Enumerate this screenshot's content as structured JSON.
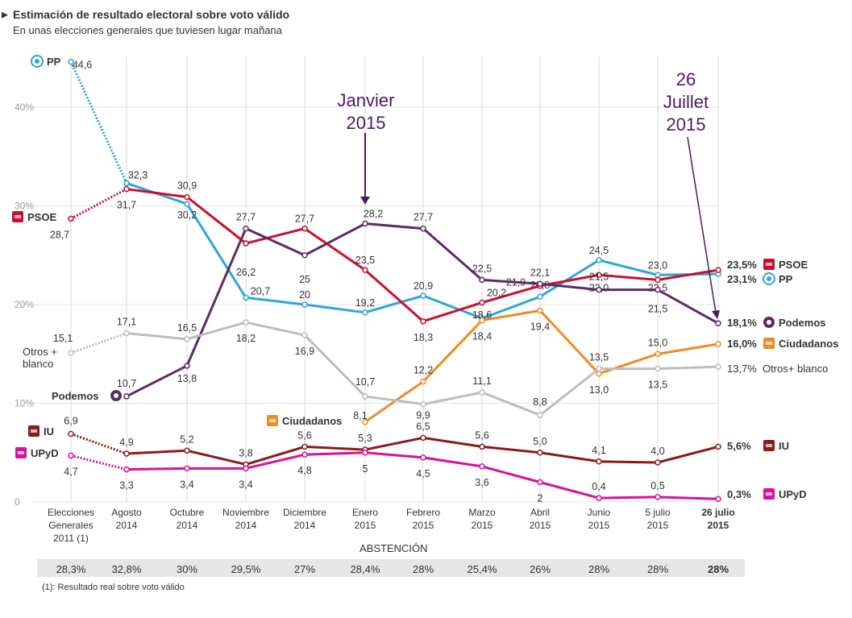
{
  "header": {
    "title": "Estimación de resultado electoral sobre voto válido",
    "subtitle": "En unas elecciones generales que tuviesen lugar mañana"
  },
  "abstention": {
    "label": "ABSTENCIÓN",
    "values": [
      "28,3%",
      "32,8%",
      "30%",
      "29,5%",
      "27%",
      "28,4%",
      "28%",
      "25,4%",
      "26%",
      "28%",
      "28%",
      "28%"
    ]
  },
  "footnote": "(1): Resultado real sobre voto válido",
  "annotations": [
    {
      "lines": [
        "Janvier",
        "2015"
      ],
      "color": "#4b1c5a",
      "points_to": 5
    },
    {
      "lines": [
        "26",
        "Juillet",
        "2015"
      ],
      "color": "#4b1c5a",
      "points_to": 11
    }
  ],
  "chart_data": {
    "type": "line",
    "categories": [
      [
        "Elecciones",
        "Generales",
        "2011 (1)"
      ],
      [
        "Agosto",
        "2014"
      ],
      [
        "Octubre",
        "2014"
      ],
      [
        "Noviembre",
        "2014"
      ],
      [
        "Diciembre",
        "2014"
      ],
      [
        "Enero",
        "2015"
      ],
      [
        "Febrero",
        "2015"
      ],
      [
        "Marzo",
        "2015"
      ],
      [
        "Abril",
        "2015"
      ],
      [
        "Junio",
        "2015"
      ],
      [
        "5 julio",
        "2015"
      ],
      [
        "26 julio",
        "2015"
      ]
    ],
    "yticks": [
      "0",
      "10%",
      "20%",
      "30%",
      "40%"
    ],
    "ylim": [
      0,
      46
    ],
    "series": [
      {
        "name": "PP",
        "color": "#2fa6d6",
        "icon": "pp-logo-icon",
        "values": [
          44.6,
          32.3,
          30.2,
          20.7,
          20.0,
          19.2,
          20.9,
          18.6,
          20.8,
          24.5,
          23.0,
          23.1
        ],
        "labels": [
          "44,6",
          "32,3",
          "30,2",
          "20,7",
          "20",
          "19,2",
          "20,9",
          "18,6",
          "20,8",
          "24,5",
          "23,0",
          ""
        ],
        "end_label": "23,1%",
        "start_name": "PP"
      },
      {
        "name": "PSOE",
        "color": "#c8102e",
        "icon": "psoe-logo-icon",
        "values": [
          28.7,
          31.7,
          30.9,
          26.2,
          27.7,
          23.5,
          18.3,
          20.2,
          21.9,
          23.0,
          22.5,
          23.5
        ],
        "labels": [
          "28,7",
          "31,7",
          "30,9",
          "26,2",
          "27,7",
          "23,5",
          "18,3",
          "20,2",
          "21,9",
          "23,0",
          "22,5",
          ""
        ],
        "end_label": "23,5%",
        "start_name": "PSOE"
      },
      {
        "name": "Podemos",
        "color": "#5e2a63",
        "icon": "podemos-logo-icon",
        "values": [
          null,
          10.7,
          13.8,
          27.7,
          25.0,
          28.2,
          27.7,
          22.5,
          22.1,
          21.5,
          21.5,
          18.1
        ],
        "labels": [
          "",
          "10,7",
          "13,8",
          "27,7",
          "25",
          "28,2",
          "27,7",
          "22,5",
          "22,1",
          "21,5",
          "21,5",
          ""
        ],
        "end_label": "18,1%",
        "start_name": "Podemos"
      },
      {
        "name": "Ciudadanos",
        "color": "#f08a24",
        "icon": "ciudadanos-logo-icon",
        "values": [
          null,
          null,
          null,
          null,
          null,
          8.1,
          12.2,
          18.4,
          19.4,
          13.0,
          15.0,
          16.0
        ],
        "labels": [
          "",
          "",
          "",
          "",
          "",
          "8,1",
          "12,2",
          "18,4",
          "19,4",
          "13,0",
          "15,0",
          ""
        ],
        "end_label": "16,0%",
        "start_name": "Ciudadanos"
      },
      {
        "name": "Otros+ blanco",
        "color": "#bdbdbd",
        "icon": "",
        "values": [
          15.1,
          17.1,
          16.5,
          18.2,
          16.9,
          10.7,
          9.9,
          11.1,
          8.8,
          13.5,
          13.5,
          13.7
        ],
        "labels": [
          "15,1",
          "17,1",
          "16,5",
          "18,2",
          "16,9",
          "10,7",
          "9,9",
          "11,1",
          "8,8",
          "13,5",
          "13,5",
          ""
        ],
        "end_label": "13,7%",
        "start_name": "Otros + blanco"
      },
      {
        "name": "IU",
        "color": "#8b1a1a",
        "icon": "iu-logo-icon",
        "values": [
          6.9,
          4.9,
          5.2,
          3.8,
          5.6,
          5.3,
          6.5,
          5.6,
          5.0,
          4.1,
          4.0,
          5.6
        ],
        "labels": [
          "6,9",
          "4,9",
          "5,2",
          "3,8",
          "5,6",
          "5,3",
          "6,5",
          "5,6",
          "5,0",
          "4,1",
          "4,0",
          ""
        ],
        "end_label": "5,6%",
        "start_name": "IU"
      },
      {
        "name": "UPyD",
        "color": "#d6119a",
        "icon": "upyd-logo-icon",
        "values": [
          4.7,
          3.3,
          3.4,
          3.4,
          4.8,
          5.0,
          4.5,
          3.6,
          2.0,
          0.4,
          0.5,
          0.3
        ],
        "labels": [
          "4,7",
          "3,3",
          "3,4",
          "3,4",
          "4,8",
          "5",
          "4,5",
          "3,6",
          "2",
          "0,4",
          "0,5",
          ""
        ],
        "end_label": "0,3%",
        "start_name": "UPyD"
      }
    ]
  }
}
